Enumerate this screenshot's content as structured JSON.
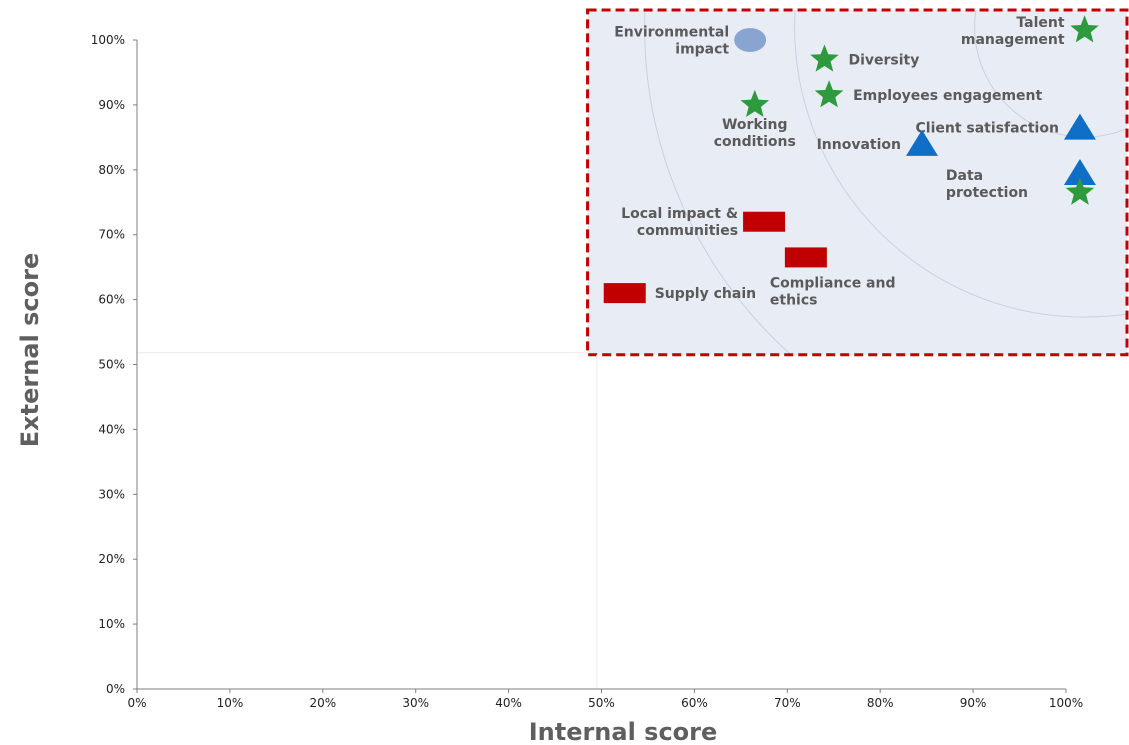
{
  "chart_data": {
    "type": "scatter",
    "title": "",
    "xlabel": "Internal score",
    "ylabel": "External score",
    "xlim": [
      0,
      100
    ],
    "ylim": [
      0,
      100
    ],
    "x_ticks": [
      "0%",
      "10%",
      "20%",
      "30%",
      "40%",
      "50%",
      "60%",
      "70%",
      "80%",
      "90%",
      "100%"
    ],
    "y_ticks": [
      "0%",
      "10%",
      "20%",
      "30%",
      "40%",
      "50%",
      "60%",
      "70%",
      "80%",
      "90%",
      "100%"
    ],
    "grid": false,
    "highlight_region": {
      "x": [
        48.5,
        100
      ],
      "y": [
        51.5,
        100
      ],
      "fill": "#e8ecf4",
      "border": "#c00000",
      "style": "dashed"
    },
    "colors": {
      "star": "#2e9a3e",
      "triangle": "#0f6fc6",
      "bar": "#c00000",
      "circle": "#8aa4d2"
    },
    "points": [
      {
        "label": "Environmental impact",
        "lines": [
          "Environmental",
          "impact"
        ],
        "x": 66,
        "y": 100,
        "marker": "circle",
        "label_pos": "left"
      },
      {
        "label": "Talent management",
        "lines": [
          "Talent",
          "management"
        ],
        "x": 102,
        "y": 101.5,
        "marker": "star",
        "label_pos": "left"
      },
      {
        "label": "Diversity",
        "lines": [
          "Diversity"
        ],
        "x": 74,
        "y": 97,
        "marker": "star",
        "label_pos": "right"
      },
      {
        "label": "Employees engagement",
        "lines": [
          "Employees engagement"
        ],
        "x": 74.5,
        "y": 91.5,
        "marker": "star",
        "label_pos": "right"
      },
      {
        "label": "Working conditions",
        "lines": [
          "Working",
          "conditions"
        ],
        "x": 66.5,
        "y": 90,
        "marker": "star",
        "label_pos": "below"
      },
      {
        "label": "Client satisfaction",
        "lines": [
          "Client satisfaction"
        ],
        "x": 101.5,
        "y": 86.5,
        "marker": "triangle",
        "label_pos": "left"
      },
      {
        "label": "Innovation",
        "lines": [
          "Innovation"
        ],
        "x": 84.5,
        "y": 84,
        "marker": "triangle",
        "label_pos": "left"
      },
      {
        "label": "Data protection",
        "lines": [
          "Data",
          "protection"
        ],
        "x": 101.5,
        "y": 79.5,
        "marker": "triangle",
        "label_pos": "left-below"
      },
      {
        "label": "",
        "lines": [],
        "x": 101.5,
        "y": 76.5,
        "marker": "star",
        "label_pos": "none"
      },
      {
        "label": "Local impact & communities",
        "lines": [
          "Local impact &",
          "communities"
        ],
        "x": 67.5,
        "y": 72,
        "marker": "bar",
        "label_pos": "left"
      },
      {
        "label": "Compliance and ethics",
        "lines": [
          "Compliance and",
          "ethics"
        ],
        "x": 72,
        "y": 66.5,
        "marker": "bar",
        "label_pos": "below"
      },
      {
        "label": "Supply chain",
        "lines": [
          "Supply chain"
        ],
        "x": 52.5,
        "y": 61,
        "marker": "bar",
        "label_pos": "right"
      }
    ]
  }
}
